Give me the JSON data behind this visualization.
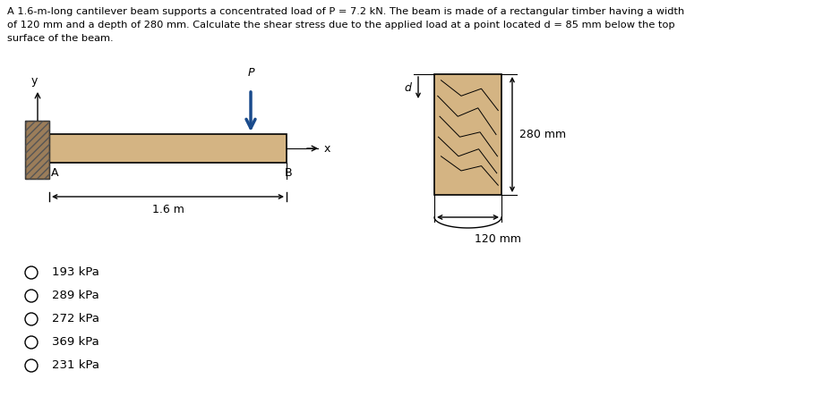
{
  "title_line1": "A 1.6-m-long cantilever beam supports a concentrated load of P = 7.2 kN. The beam is made of a rectangular timber having a width",
  "title_line2": "of 120 mm and a depth of 280 mm. Calculate the shear stress due to the applied load at a point located d = 85 mm below the top",
  "title_line3": "surface of the beam.",
  "beam_color": "#d4b483",
  "wall_color": "#9b7d5a",
  "arrow_color": "#1a4b8c",
  "options": [
    "193 kPa",
    "289 kPa",
    "272 kPa",
    "369 kPa",
    "231 kPa"
  ],
  "label_16m": "1.6 m",
  "label_A": "A",
  "label_B": "B",
  "label_P": "P",
  "label_x": "x",
  "label_y": "y",
  "label_d": "d",
  "label_280mm": "280 mm",
  "label_120mm": "120 mm"
}
